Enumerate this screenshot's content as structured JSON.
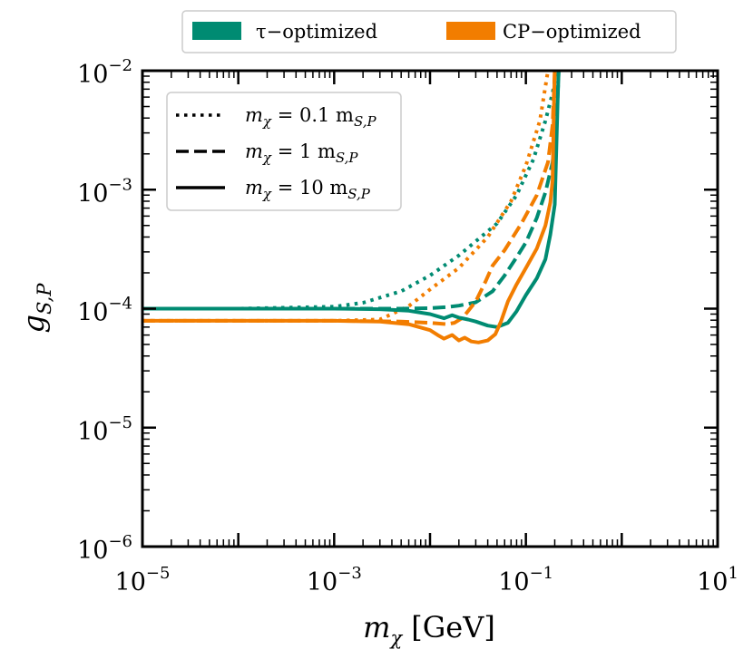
{
  "chart_data": {
    "type": "line",
    "title": "",
    "xlabel": {
      "main": "m",
      "sub": "χ",
      "unit": "[GeV]"
    },
    "ylabel": {
      "main": "g",
      "sub": "S,P"
    },
    "xscale": "log",
    "yscale": "log",
    "xlim": [
      1e-05,
      10
    ],
    "ylim": [
      1e-06,
      0.01
    ],
    "x_ticks": [
      {
        "base": "10",
        "exp": "−5"
      },
      {
        "base": "10",
        "exp": "−3"
      },
      {
        "base": "10",
        "exp": "−1"
      },
      {
        "base": "10",
        "exp": "1"
      }
    ],
    "y_ticks": [
      {
        "base": "10",
        "exp": "−6"
      },
      {
        "base": "10",
        "exp": "−5"
      },
      {
        "base": "10",
        "exp": "−4"
      },
      {
        "base": "10",
        "exp": "−3"
      },
      {
        "base": "10",
        "exp": "−2"
      }
    ],
    "color_legend": {
      "placement": "top (above axes)",
      "entries": [
        {
          "label": "τ−optimized",
          "color": "#008b72"
        },
        {
          "label": "CP−optimized",
          "color": "#f27d00"
        }
      ]
    },
    "style_legend": {
      "placement": "upper-left",
      "entries": [
        {
          "label": "m",
          "sub": "χ",
          "rest": " = 0.1 m",
          "sub2": "S,P",
          "dash": "dotted"
        },
        {
          "label": "m",
          "sub": "χ",
          "rest": " = 1 m",
          "sub2": "S,P",
          "dash": "dashed"
        },
        {
          "label": "m",
          "sub": "χ",
          "rest": " = 10 m",
          "sub2": "S,P",
          "dash": "solid"
        }
      ]
    },
    "series": [
      {
        "name": "τ−optimized, m_χ = 0.1 m_S,P",
        "color": "#008b72",
        "dash": "dotted",
        "x": [
          1e-05,
          0.0001,
          0.001,
          0.002,
          0.005,
          0.01,
          0.02,
          0.05,
          0.08,
          0.12,
          0.16,
          0.19,
          0.21
        ],
        "y": [
          0.0001,
          0.0001,
          0.000104,
          0.000112,
          0.00014,
          0.00019,
          0.00028,
          0.00052,
          0.0009,
          0.0018,
          0.0038,
          0.0065,
          0.01
        ]
      },
      {
        "name": "CP−optimized, m_χ = 0.1 m_S,P",
        "color": "#f27d00",
        "dash": "dotted",
        "x": [
          1e-05,
          0.001,
          0.003,
          0.006,
          0.01,
          0.02,
          0.04,
          0.07,
          0.1,
          0.14,
          0.17
        ],
        "y": [
          7.9e-05,
          7.9e-05,
          8.1e-05,
          0.000105,
          0.000145,
          0.00022,
          0.0004,
          0.0008,
          0.0016,
          0.0038,
          0.01
        ]
      },
      {
        "name": "τ−optimized, m_χ = 1 m_S,P",
        "color": "#008b72",
        "dash": "dashed",
        "x": [
          1e-05,
          0.001,
          0.005,
          0.01,
          0.015,
          0.02,
          0.03,
          0.045,
          0.06,
          0.08,
          0.1,
          0.13,
          0.16,
          0.19,
          0.21,
          0.22
        ],
        "y": [
          0.0001,
          0.0001,
          0.0001,
          0.000101,
          0.000103,
          0.000106,
          0.000113,
          0.00014,
          0.00019,
          0.00027,
          0.00036,
          0.00058,
          0.00095,
          0.0017,
          0.004,
          0.01
        ]
      },
      {
        "name": "CP−optimized, m_χ = 1 m_S,P",
        "color": "#f27d00",
        "dash": "dashed",
        "x": [
          1e-05,
          0.001,
          0.005,
          0.01,
          0.015,
          0.018,
          0.022,
          0.03,
          0.038,
          0.045,
          0.06,
          0.09,
          0.13,
          0.17,
          0.19,
          0.2
        ],
        "y": [
          7.9e-05,
          7.9e-05,
          7.8e-05,
          7.6e-05,
          7.4e-05,
          7.6e-05,
          8.4e-05,
          0.000115,
          0.00017,
          0.00023,
          0.00031,
          0.00052,
          0.0009,
          0.0017,
          0.0035,
          0.01
        ]
      },
      {
        "name": "τ−optimized, m_χ = 10 m_S,P",
        "color": "#008b72",
        "dash": "solid",
        "x": [
          1e-05,
          0.001,
          0.003,
          0.006,
          0.01,
          0.014,
          0.017,
          0.02,
          0.025,
          0.03,
          0.04,
          0.05,
          0.065,
          0.08,
          0.1,
          0.13,
          0.16,
          0.18,
          0.2,
          0.205,
          0.21,
          0.215,
          0.22
        ],
        "y": [
          0.0001,
          0.0001,
          9.9e-05,
          9.6e-05,
          9e-05,
          8.3e-05,
          8.8e-05,
          8.4e-05,
          8.1e-05,
          7.8e-05,
          7.2e-05,
          7e-05,
          7.6e-05,
          9.5e-05,
          0.00013,
          0.00018,
          0.00026,
          0.00042,
          0.00075,
          0.0015,
          0.003,
          0.006,
          0.01
        ]
      },
      {
        "name": "CP−optimized, m_χ = 10 m_S,P",
        "color": "#f27d00",
        "dash": "solid",
        "x": [
          1e-05,
          0.001,
          0.003,
          0.006,
          0.01,
          0.012,
          0.014,
          0.017,
          0.02,
          0.023,
          0.027,
          0.032,
          0.04,
          0.048,
          0.055,
          0.065,
          0.08,
          0.1,
          0.13,
          0.16,
          0.18,
          0.19,
          0.193,
          0.196,
          0.2
        ],
        "y": [
          7.9e-05,
          7.9e-05,
          7.8e-05,
          7.4e-05,
          6.6e-05,
          6e-05,
          5.6e-05,
          6e-05,
          5.4e-05,
          5.7e-05,
          5.3e-05,
          5.2e-05,
          5.4e-05,
          6.1e-05,
          7.8e-05,
          0.000115,
          0.00016,
          0.00022,
          0.00032,
          0.0005,
          0.00078,
          0.0012,
          0.0024,
          0.005,
          0.01
        ]
      }
    ]
  }
}
